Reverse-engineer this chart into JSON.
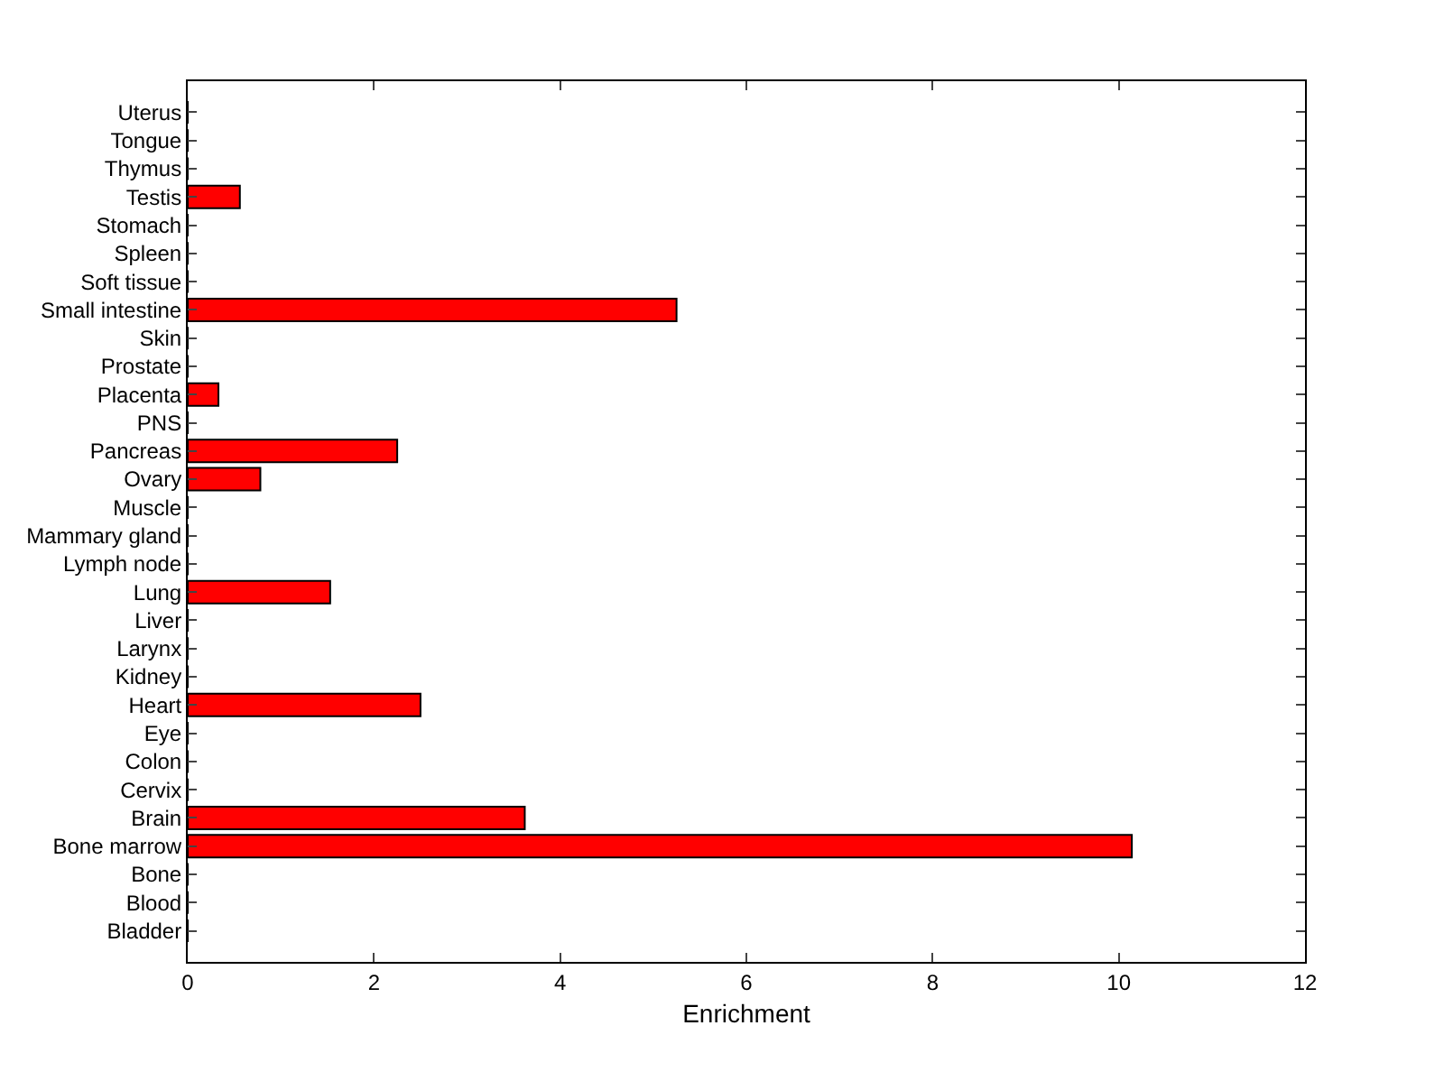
{
  "chart_data": {
    "type": "bar",
    "orientation": "horizontal",
    "xlabel": "Enrichment",
    "categories": [
      "Uterus",
      "Tongue",
      "Thymus",
      "Testis",
      "Stomach",
      "Spleen",
      "Soft tissue",
      "Small intestine",
      "Skin",
      "Prostate",
      "Placenta",
      "PNS",
      "Pancreas",
      "Ovary",
      "Muscle",
      "Mammary gland",
      "Lymph node",
      "Lung",
      "Liver",
      "Larynx",
      "Kidney",
      "Heart",
      "Eye",
      "Colon",
      "Cervix",
      "Brain",
      "Bone marrow",
      "Bone",
      "Blood",
      "Bladder"
    ],
    "values": [
      0,
      0,
      0,
      0.56,
      0,
      0,
      0,
      5.25,
      0,
      0,
      0.33,
      0,
      2.25,
      0.78,
      0,
      0,
      0,
      1.53,
      0,
      0,
      0,
      2.5,
      0,
      0,
      0,
      3.62,
      10.14,
      0,
      0,
      0
    ],
    "color": "#ff0000",
    "xlim": [
      0,
      12
    ],
    "xticks": [
      0,
      2,
      4,
      6,
      8,
      10,
      12
    ],
    "grid": false,
    "legend": false
  }
}
